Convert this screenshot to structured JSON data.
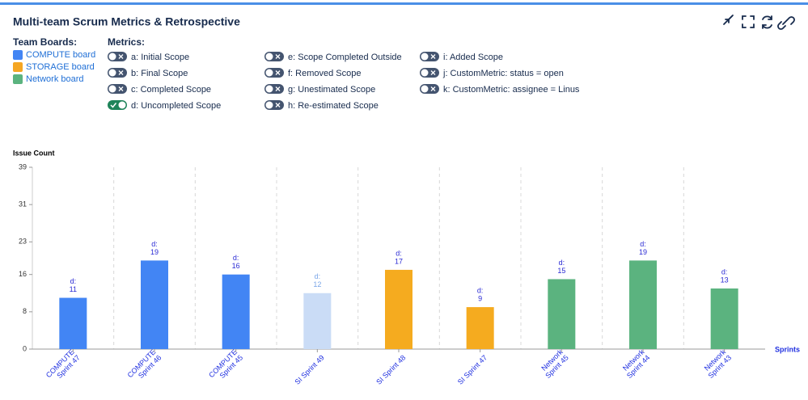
{
  "header": {
    "title": "Multi-team Scrum Metrics & Retrospective"
  },
  "team_boards": {
    "title": "Team Boards:",
    "items": [
      {
        "label": "COMPUTE board",
        "color": "#4285f4"
      },
      {
        "label": "STORAGE board",
        "color": "#f5a623"
      },
      {
        "label": "Network board",
        "color": "#5bb37f"
      }
    ]
  },
  "metrics": {
    "title": "Metrics:",
    "items": [
      {
        "label": "a: Initial Scope",
        "on": false
      },
      {
        "label": "b: Final Scope",
        "on": false
      },
      {
        "label": "c: Completed Scope",
        "on": false
      },
      {
        "label": "d: Uncompleted Scope",
        "on": true
      },
      {
        "label": "e: Scope Completed Outside",
        "on": false
      },
      {
        "label": "f: Removed Scope",
        "on": false
      },
      {
        "label": "g: Unestimated Scope",
        "on": false
      },
      {
        "label": "h: Re-estimated Scope",
        "on": false
      },
      {
        "label": "i: Added Scope",
        "on": false
      },
      {
        "label": "j: CustomMetric: status = open",
        "on": false
      },
      {
        "label": "k: CustomMetric: assignee = Linus",
        "on": false
      }
    ]
  },
  "chart_data": {
    "type": "bar",
    "y_label": "Issue Count",
    "x_label": "Sprints",
    "categories": [
      [
        "COMPUTE",
        "Sprint 47"
      ],
      [
        "COMPUTE",
        "Sprint 46"
      ],
      [
        "COMPUTE",
        "Sprint 45"
      ],
      [
        "SI Sprint 49"
      ],
      [
        "SI Sprint 48"
      ],
      [
        "SI Sprint 47"
      ],
      [
        "Network",
        "Sprint 45"
      ],
      [
        "Network",
        "Sprint 44"
      ],
      [
        "Network",
        "Sprint 43"
      ]
    ],
    "series": [
      {
        "name": "d:",
        "values": [
          11,
          19,
          16,
          12,
          17,
          9,
          15,
          19,
          13
        ],
        "colors": [
          "#4285f4",
          "#4285f4",
          "#4285f4",
          "#cadcf6",
          "#f5ab1f",
          "#f5ab1f",
          "#5bb37f",
          "#5bb37f",
          "#5bb37f"
        ]
      }
    ],
    "ylim": [
      0,
      39
    ],
    "yticks": [
      0,
      8,
      16,
      23,
      31,
      39
    ],
    "grid": true
  }
}
